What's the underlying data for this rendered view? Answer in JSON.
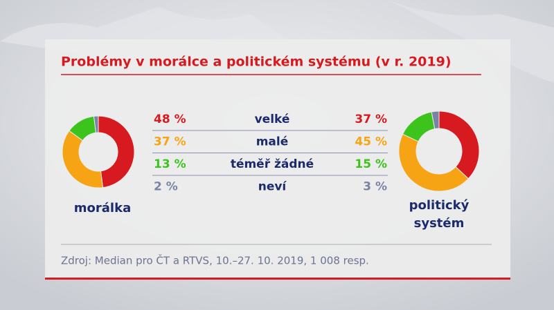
{
  "title": "Problémy v morálce a politickém systému (v r. 2019)",
  "source": "Zdroj: Median pro ČT a RTVS, 10.–27. 10. 2019, 1 008 resp.",
  "chart_data": [
    {
      "type": "pie",
      "title": "morálka",
      "donut": true,
      "categories": [
        "velké",
        "malé",
        "téměř žádné",
        "neví"
      ],
      "values": [
        48,
        37,
        13,
        2
      ],
      "value_labels": [
        "48 %",
        "37 %",
        "13 %",
        "2 %"
      ],
      "colors": [
        "#d71a1f",
        "#f7a414",
        "#3cc31c",
        "#7a83a3"
      ]
    },
    {
      "type": "pie",
      "title": "politický systém",
      "donut": true,
      "categories": [
        "velké",
        "malé",
        "téměř žádné",
        "neví"
      ],
      "values": [
        37,
        45,
        15,
        3
      ],
      "value_labels": [
        "37 %",
        "45 %",
        "15 %",
        "3 %"
      ],
      "colors": [
        "#d71a1f",
        "#f7a414",
        "#3cc31c",
        "#7a83a3"
      ]
    }
  ]
}
